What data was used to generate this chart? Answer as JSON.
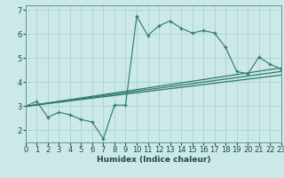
{
  "xlabel": "Humidex (Indice chaleur)",
  "bg_color": "#cce8e8",
  "grid_color": "#b0d4d4",
  "line_color": "#2a7a6a",
  "xlim": [
    0,
    23
  ],
  "ylim": [
    1.5,
    7.2
  ],
  "xticks": [
    0,
    1,
    2,
    3,
    4,
    5,
    6,
    7,
    8,
    9,
    10,
    11,
    12,
    13,
    14,
    15,
    16,
    17,
    18,
    19,
    20,
    21,
    22,
    23
  ],
  "yticks": [
    2,
    3,
    4,
    5,
    6,
    7
  ],
  "main_x": [
    0,
    1,
    2,
    3,
    4,
    5,
    6,
    7,
    8,
    9,
    10,
    11,
    12,
    13,
    14,
    15,
    16,
    17,
    18,
    19,
    20,
    21,
    22,
    23
  ],
  "main_y": [
    3.0,
    3.2,
    2.55,
    2.75,
    2.65,
    2.45,
    2.35,
    1.65,
    3.05,
    3.05,
    6.75,
    5.95,
    6.35,
    6.55,
    6.25,
    6.05,
    6.15,
    6.05,
    5.45,
    4.45,
    4.35,
    5.05,
    4.75,
    4.55
  ],
  "line1_x": [
    0,
    23
  ],
  "line1_y": [
    3.0,
    4.6
  ],
  "line2_x": [
    0,
    23
  ],
  "line2_y": [
    3.0,
    4.45
  ],
  "line3_x": [
    0,
    23
  ],
  "line3_y": [
    3.0,
    4.3
  ]
}
